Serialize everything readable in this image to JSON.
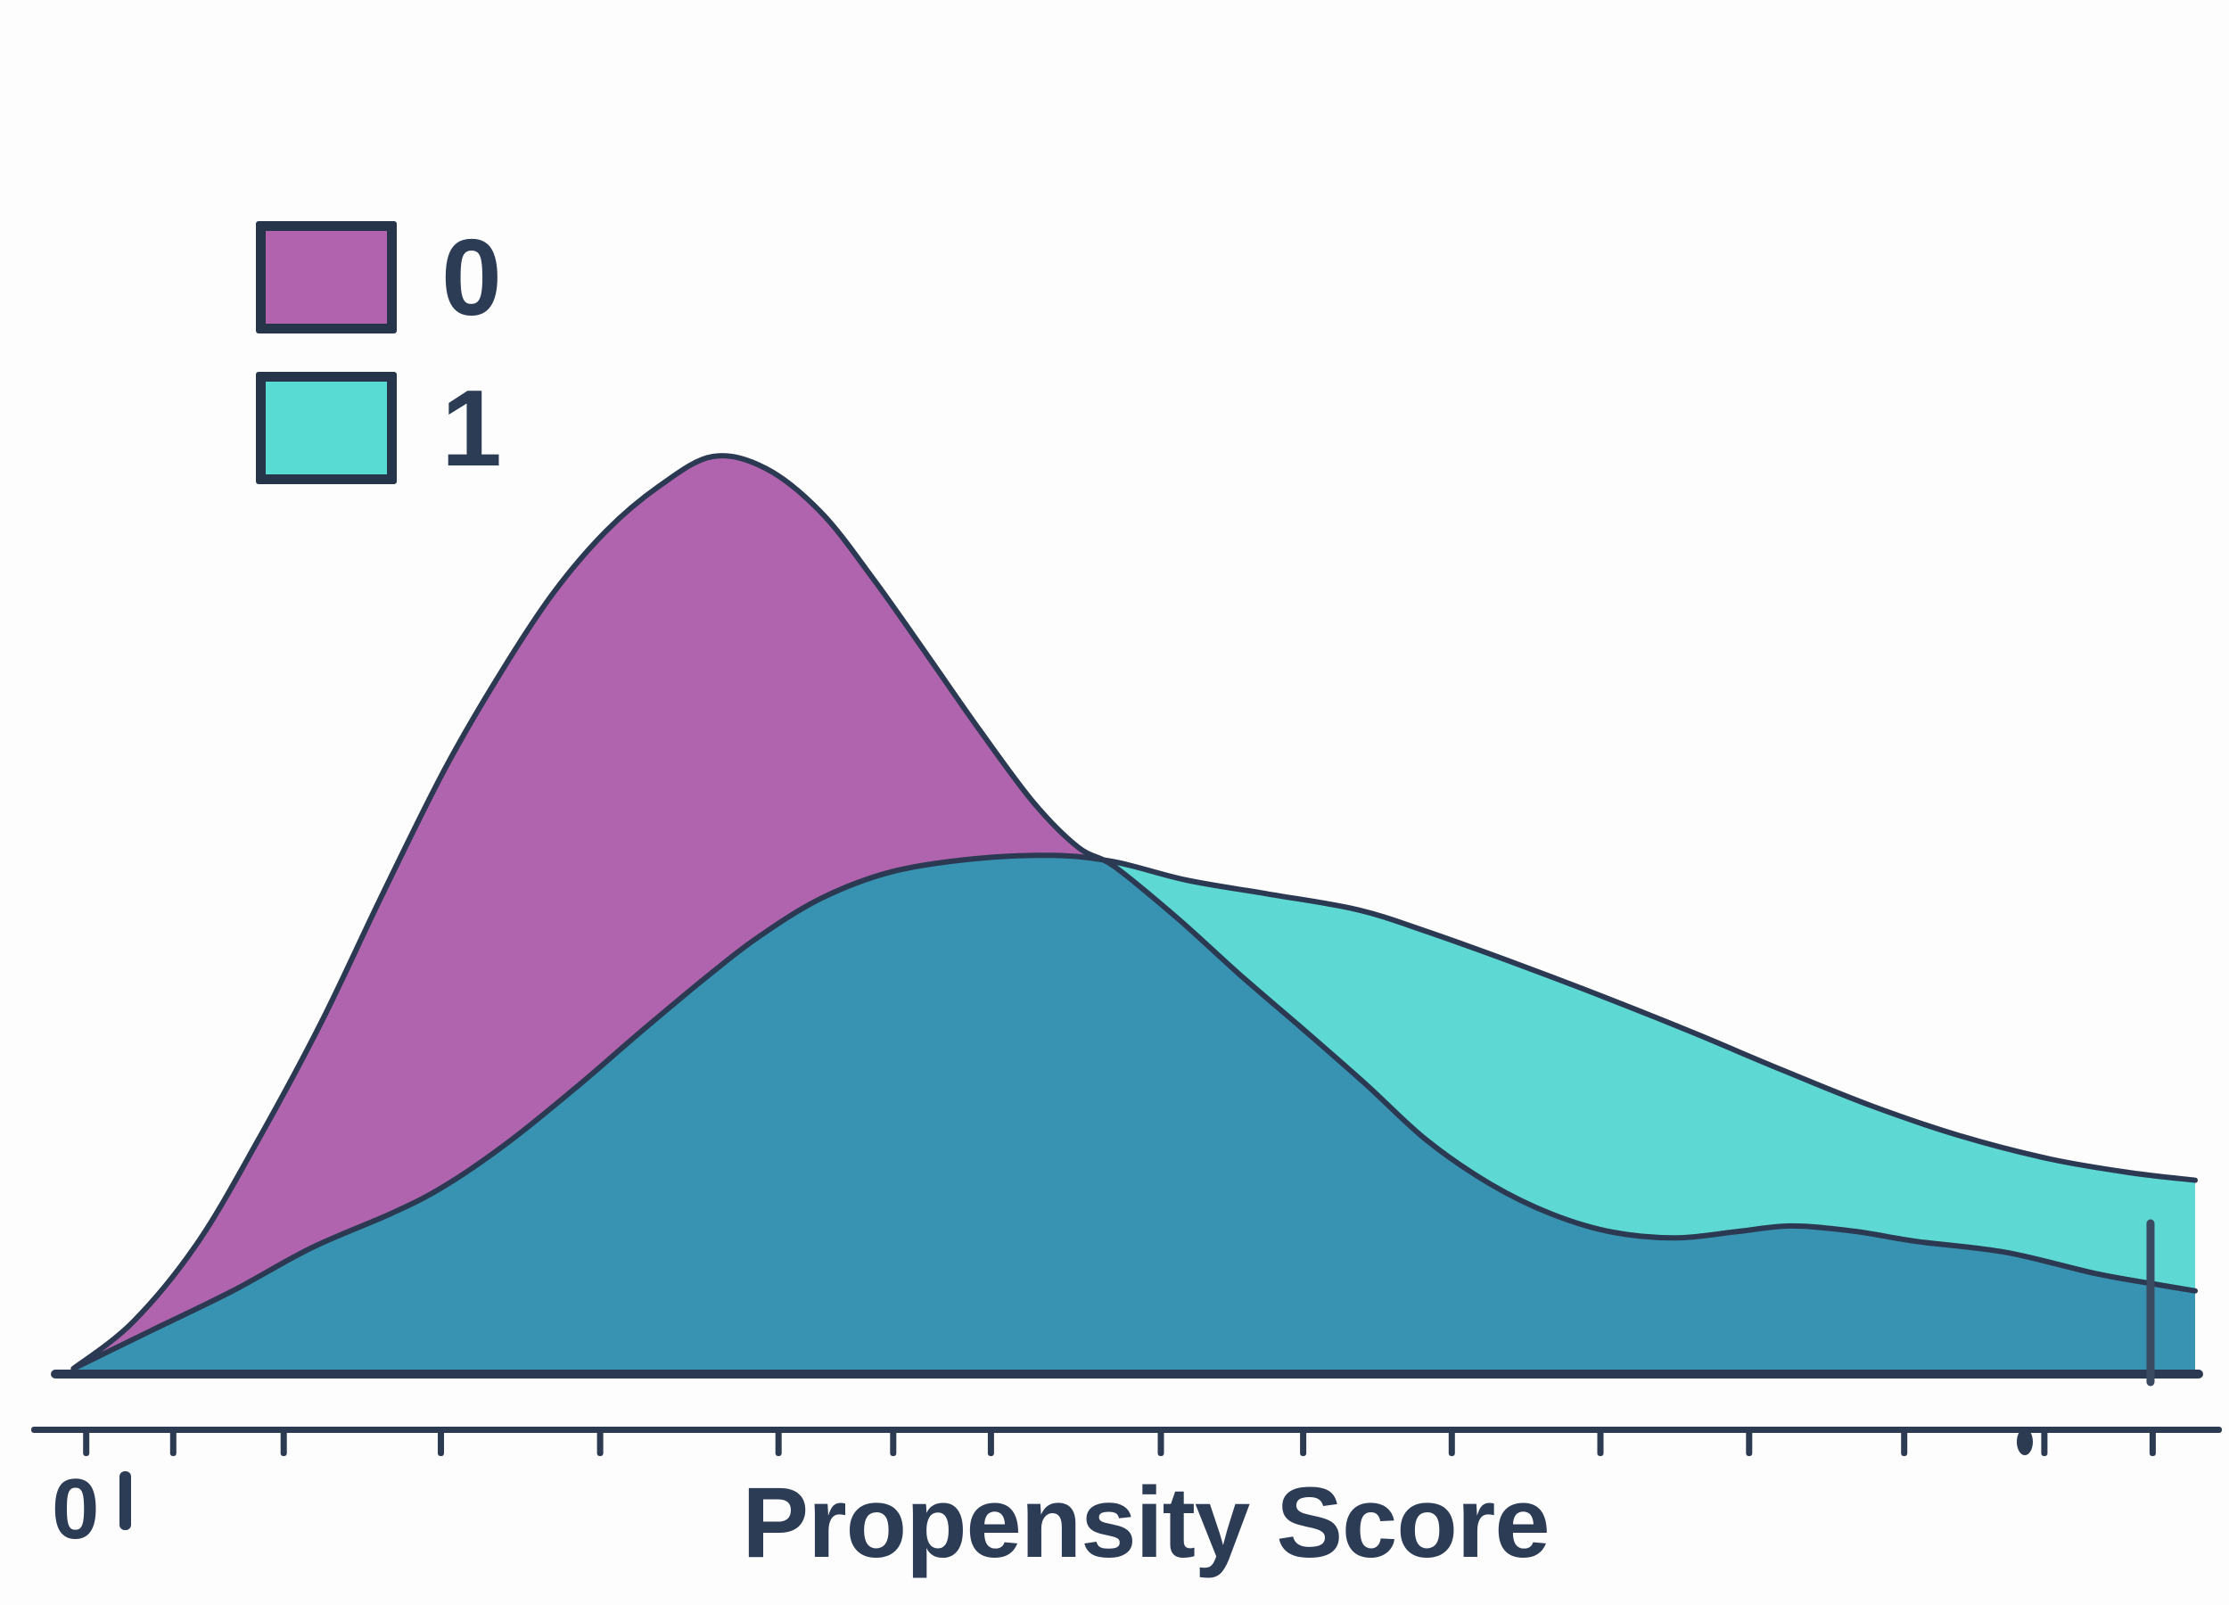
{
  "colors": {
    "background": "#fdfdfe",
    "series0_fill": "#b164ae",
    "series1_fill": "#5dd8d3",
    "overlap_fill": "#3793b1",
    "curve_stroke": "#2b3a52",
    "axis": "#2c3b52",
    "text": "#2c3c55",
    "rug": "#3a4a61",
    "legend_swatch0": "#b263ae",
    "legend_swatch1": "#57dbd3"
  },
  "chart_data": {
    "type": "area",
    "subtype": "kde-density-overlay",
    "title": "",
    "xlabel": "Propensity Score",
    "ylabel": "",
    "x_axis_tick_labels": [
      "0"
    ],
    "grid": false,
    "legend": {
      "position": "upper-left",
      "entries": [
        {
          "label": "0"
        },
        {
          "label": "1"
        }
      ]
    },
    "note": "x is normalized position along propensity-score axis (0-1), d is density normalized to the peak of group 0",
    "series": [
      {
        "name": "0",
        "points": [
          [
            0.001,
            0.003
          ],
          [
            0.029,
            0.054
          ],
          [
            0.059,
            0.139
          ],
          [
            0.088,
            0.253
          ],
          [
            0.118,
            0.383
          ],
          [
            0.147,
            0.524
          ],
          [
            0.176,
            0.659
          ],
          [
            0.202,
            0.763
          ],
          [
            0.227,
            0.851
          ],
          [
            0.252,
            0.919
          ],
          [
            0.277,
            0.968
          ],
          [
            0.302,
            1.0
          ],
          [
            0.327,
            0.987
          ],
          [
            0.353,
            0.939
          ],
          [
            0.378,
            0.865
          ],
          [
            0.403,
            0.783
          ],
          [
            0.428,
            0.7
          ],
          [
            0.453,
            0.622
          ],
          [
            0.474,
            0.573
          ],
          [
            0.491,
            0.552
          ],
          [
            0.521,
            0.495
          ],
          [
            0.55,
            0.434
          ],
          [
            0.579,
            0.376
          ],
          [
            0.609,
            0.315
          ],
          [
            0.638,
            0.253
          ],
          [
            0.668,
            0.205
          ],
          [
            0.697,
            0.172
          ],
          [
            0.726,
            0.152
          ],
          [
            0.756,
            0.146
          ],
          [
            0.785,
            0.153
          ],
          [
            0.81,
            0.159
          ],
          [
            0.84,
            0.153
          ],
          [
            0.869,
            0.142
          ],
          [
            0.911,
            0.13
          ],
          [
            0.953,
            0.107
          ],
          [
            0.982,
            0.095
          ],
          [
            1.0,
            0.088
          ]
        ]
      },
      {
        "name": "1",
        "points": [
          [
            0.001,
            0.003
          ],
          [
            0.038,
            0.045
          ],
          [
            0.076,
            0.088
          ],
          [
            0.113,
            0.135
          ],
          [
            0.151,
            0.173
          ],
          [
            0.176,
            0.203
          ],
          [
            0.206,
            0.251
          ],
          [
            0.239,
            0.313
          ],
          [
            0.269,
            0.373
          ],
          [
            0.298,
            0.429
          ],
          [
            0.323,
            0.474
          ],
          [
            0.353,
            0.517
          ],
          [
            0.386,
            0.546
          ],
          [
            0.424,
            0.56
          ],
          [
            0.462,
            0.564
          ],
          [
            0.491,
            0.557
          ],
          [
            0.525,
            0.537
          ],
          [
            0.563,
            0.522
          ],
          [
            0.605,
            0.505
          ],
          [
            0.638,
            0.481
          ],
          [
            0.68,
            0.446
          ],
          [
            0.722,
            0.409
          ],
          [
            0.764,
            0.37
          ],
          [
            0.806,
            0.329
          ],
          [
            0.848,
            0.29
          ],
          [
            0.89,
            0.257
          ],
          [
            0.932,
            0.232
          ],
          [
            0.97,
            0.217
          ],
          [
            1.0,
            0.209
          ]
        ]
      }
    ],
    "axis": {
      "ticks_u": [
        0.007,
        0.048,
        0.1,
        0.174,
        0.249,
        0.333,
        0.387,
        0.433,
        0.513,
        0.58,
        0.65,
        0.72,
        0.79,
        0.863,
        0.929,
        0.98
      ],
      "blob_mark_u": 0.92,
      "rug_mark": {
        "u": 0.979,
        "d_top": 0.162
      }
    }
  }
}
